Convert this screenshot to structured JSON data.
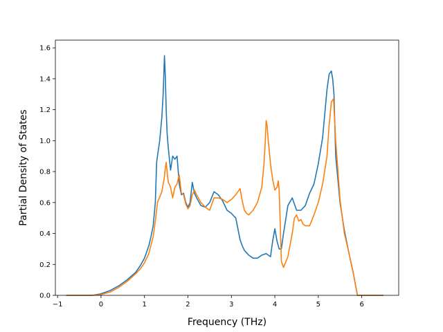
{
  "chart_data": {
    "type": "line",
    "title": "",
    "xlabel": "Frequency (THz)",
    "ylabel": "Partial Density of States",
    "xlim": [
      -1.05,
      6.85
    ],
    "ylim": [
      0.0,
      1.65
    ],
    "xticks": [
      -1,
      0,
      1,
      2,
      3,
      4,
      5,
      6
    ],
    "xtick_labels": [
      "−1",
      "0",
      "1",
      "2",
      "3",
      "4",
      "5",
      "6"
    ],
    "yticks": [
      0.0,
      0.2,
      0.4,
      0.6,
      0.8,
      1.0,
      1.2,
      1.4,
      1.6
    ],
    "ytick_labels": [
      "0.0",
      "0.2",
      "0.4",
      "0.6",
      "0.8",
      "1.0",
      "1.2",
      "1.4",
      "1.6"
    ],
    "grid": false,
    "legend": "none",
    "series": [
      {
        "color": "#1f77b4",
        "x": [
          -0.8,
          -0.2,
          0.0,
          0.2,
          0.4,
          0.6,
          0.8,
          0.9,
          1.0,
          1.1,
          1.15,
          1.2,
          1.25,
          1.28,
          1.3,
          1.35,
          1.4,
          1.43,
          1.46,
          1.48,
          1.5,
          1.52,
          1.55,
          1.6,
          1.65,
          1.7,
          1.75,
          1.8,
          1.85,
          1.9,
          1.95,
          2.0,
          2.05,
          2.1,
          2.15,
          2.2,
          2.3,
          2.4,
          2.5,
          2.6,
          2.65,
          2.7,
          2.8,
          2.9,
          3.0,
          3.1,
          3.15,
          3.2,
          3.25,
          3.3,
          3.4,
          3.5,
          3.6,
          3.7,
          3.8,
          3.9,
          3.95,
          4.0,
          4.05,
          4.1,
          4.15,
          4.2,
          4.3,
          4.4,
          4.5,
          4.6,
          4.7,
          4.8,
          4.9,
          5.0,
          5.1,
          5.2,
          5.25,
          5.3,
          5.33,
          5.36,
          5.4,
          5.5,
          5.6,
          5.7,
          5.8,
          5.9,
          6.0,
          6.5
        ],
        "y": [
          0.0,
          0.0,
          0.01,
          0.03,
          0.06,
          0.1,
          0.15,
          0.19,
          0.24,
          0.32,
          0.38,
          0.45,
          0.6,
          0.86,
          0.9,
          1.0,
          1.15,
          1.3,
          1.55,
          1.42,
          1.2,
          1.05,
          0.95,
          0.81,
          0.9,
          0.88,
          0.9,
          0.72,
          0.65,
          0.66,
          0.6,
          0.57,
          0.6,
          0.73,
          0.66,
          0.63,
          0.58,
          0.57,
          0.6,
          0.67,
          0.66,
          0.65,
          0.61,
          0.55,
          0.53,
          0.5,
          0.43,
          0.36,
          0.32,
          0.29,
          0.26,
          0.24,
          0.24,
          0.26,
          0.27,
          0.25,
          0.35,
          0.43,
          0.35,
          0.3,
          0.3,
          0.4,
          0.58,
          0.63,
          0.55,
          0.55,
          0.58,
          0.66,
          0.72,
          0.85,
          1.02,
          1.33,
          1.43,
          1.45,
          1.4,
          1.3,
          0.9,
          0.6,
          0.42,
          0.28,
          0.15,
          0.0,
          0.0,
          0.0
        ]
      },
      {
        "color": "#ff7f0e",
        "x": [
          -0.8,
          -0.2,
          0.0,
          0.2,
          0.4,
          0.6,
          0.8,
          0.9,
          1.0,
          1.1,
          1.2,
          1.25,
          1.3,
          1.4,
          1.45,
          1.48,
          1.5,
          1.52,
          1.55,
          1.6,
          1.65,
          1.7,
          1.75,
          1.8,
          1.85,
          1.9,
          1.95,
          2.0,
          2.05,
          2.1,
          2.15,
          2.2,
          2.3,
          2.4,
          2.5,
          2.6,
          2.65,
          2.7,
          2.8,
          2.9,
          3.0,
          3.1,
          3.2,
          3.25,
          3.3,
          3.35,
          3.4,
          3.5,
          3.6,
          3.7,
          3.75,
          3.78,
          3.8,
          3.82,
          3.85,
          3.9,
          3.95,
          4.0,
          4.05,
          4.08,
          4.1,
          4.12,
          4.15,
          4.2,
          4.3,
          4.4,
          4.45,
          4.5,
          4.55,
          4.6,
          4.65,
          4.7,
          4.8,
          4.9,
          5.0,
          5.1,
          5.2,
          5.25,
          5.3,
          5.35,
          5.4,
          5.5,
          5.6,
          5.7,
          5.8,
          5.9,
          6.0,
          6.5
        ],
        "y": [
          0.0,
          0.0,
          0.005,
          0.02,
          0.05,
          0.09,
          0.14,
          0.17,
          0.21,
          0.27,
          0.38,
          0.48,
          0.6,
          0.67,
          0.75,
          0.82,
          0.86,
          0.8,
          0.73,
          0.7,
          0.63,
          0.7,
          0.72,
          0.78,
          0.66,
          0.65,
          0.59,
          0.56,
          0.58,
          0.65,
          0.68,
          0.65,
          0.6,
          0.57,
          0.55,
          0.63,
          0.63,
          0.63,
          0.62,
          0.6,
          0.62,
          0.65,
          0.69,
          0.61,
          0.55,
          0.53,
          0.52,
          0.55,
          0.6,
          0.7,
          0.85,
          1.0,
          1.13,
          1.1,
          1.0,
          0.85,
          0.75,
          0.68,
          0.7,
          0.74,
          0.68,
          0.5,
          0.22,
          0.18,
          0.25,
          0.4,
          0.5,
          0.52,
          0.48,
          0.49,
          0.46,
          0.45,
          0.45,
          0.52,
          0.6,
          0.72,
          0.9,
          1.1,
          1.25,
          1.27,
          1.0,
          0.62,
          0.4,
          0.28,
          0.15,
          0.0,
          0.0,
          0.0
        ]
      }
    ]
  }
}
